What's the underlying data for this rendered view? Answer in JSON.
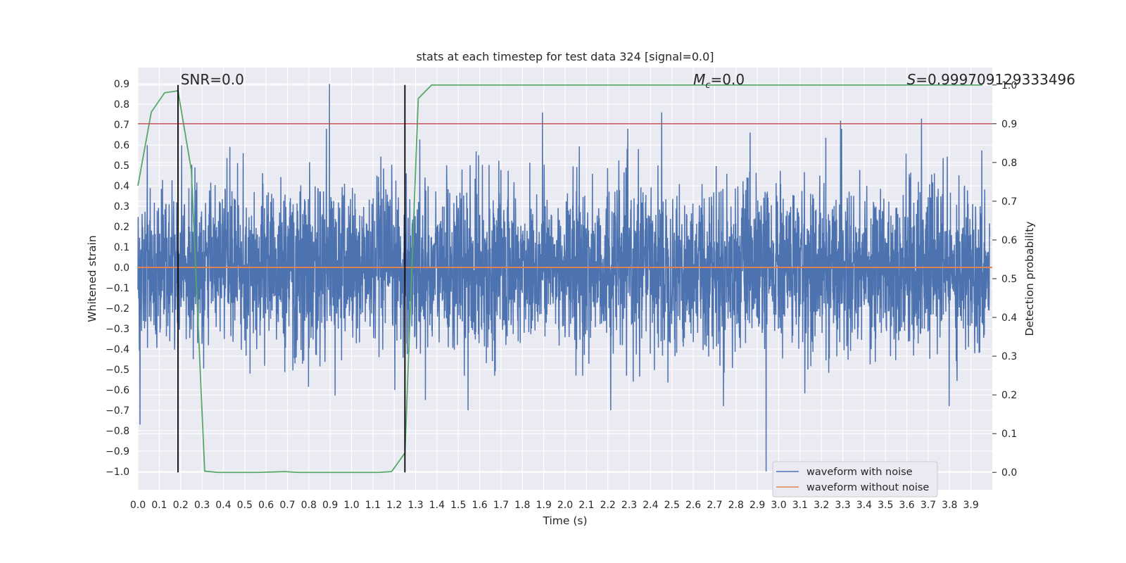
{
  "chart_data": {
    "type": "line",
    "title": "stats at each timestep for test data 324 [signal=0.0]",
    "xlabel": "Time (s)",
    "ylabel": "Whitened strain",
    "y2label": "Detection probability",
    "xlim": [
      0.0,
      4.0
    ],
    "ylim": [
      -1.09,
      0.98
    ],
    "y2lim": [
      -0.045,
      1.045
    ],
    "x_ticks": [
      "0.0",
      "0.1",
      "0.2",
      "0.3",
      "0.4",
      "0.5",
      "0.6",
      "0.7",
      "0.8",
      "0.9",
      "1.0",
      "1.1",
      "1.2",
      "1.3",
      "1.4",
      "1.5",
      "1.6",
      "1.7",
      "1.8",
      "1.9",
      "2.0",
      "2.1",
      "2.2",
      "2.3",
      "2.4",
      "2.5",
      "2.6",
      "2.7",
      "2.8",
      "2.9",
      "3.0",
      "3.1",
      "3.2",
      "3.3",
      "3.4",
      "3.5",
      "3.6",
      "3.7",
      "3.8",
      "3.9"
    ],
    "y_ticks": [
      "0.9",
      "0.8",
      "0.7",
      "0.6",
      "0.5",
      "0.4",
      "0.3",
      "0.2",
      "0.1",
      "0.0",
      "−0.1",
      "−0.2",
      "−0.3",
      "−0.4",
      "−0.5",
      "−0.6",
      "−0.7",
      "−0.8",
      "−0.9",
      "−1.0"
    ],
    "y2_ticks": [
      "1.0",
      "0.9",
      "0.8",
      "0.7",
      "0.6",
      "0.5",
      "0.4",
      "0.3",
      "0.2",
      "0.1",
      "0.0"
    ],
    "grid": true,
    "legend_position": "lower-right",
    "series": [
      {
        "name": "waveform with noise",
        "axis": "left",
        "color": "#4c72b0",
        "style": "dense-noise",
        "noise_sigma": 0.2,
        "spikes": [
          {
            "x": 0.9,
            "y": 0.9
          },
          {
            "x": 1.9,
            "y": 0.76
          },
          {
            "x": 2.46,
            "y": 0.76
          },
          {
            "x": 3.3,
            "y": 0.72
          },
          {
            "x": 3.68,
            "y": 0.73
          },
          {
            "x": 0.01,
            "y": -0.77
          },
          {
            "x": 2.95,
            "y": -1.0
          },
          {
            "x": 2.22,
            "y": -0.7
          },
          {
            "x": 3.81,
            "y": -0.68
          },
          {
            "x": 1.55,
            "y": -0.7
          },
          {
            "x": 1.35,
            "y": -0.65
          }
        ]
      },
      {
        "name": "waveform without noise",
        "axis": "left",
        "color": "#dd8452",
        "x": [
          0.0,
          4.0
        ],
        "y": [
          0.0,
          0.0
        ]
      },
      {
        "name": "",
        "axis": "right",
        "color": "#55a868",
        "x": [
          0.0,
          0.0625,
          0.125,
          0.1875,
          0.25,
          0.3125,
          0.375,
          0.4375,
          0.5,
          0.5625,
          0.625,
          0.6875,
          0.75,
          0.8125,
          0.875,
          0.9375,
          1.0,
          1.0625,
          1.125,
          1.1875,
          1.25,
          1.3125,
          1.375,
          1.4375,
          1.5,
          2.0,
          2.5,
          3.0,
          3.5,
          4.0
        ],
        "y": [
          0.74,
          0.93,
          0.98,
          0.985,
          0.78,
          0.003,
          0.0,
          0.0,
          0.0,
          0.0,
          0.001,
          0.002,
          0.0,
          0.0,
          0.0,
          0.0,
          0.0,
          0.0,
          0.0,
          0.002,
          0.05,
          0.965,
          1.0,
          1.0,
          1.0,
          1.0,
          1.0,
          1.0,
          1.0,
          1.0
        ]
      }
    ],
    "hlines": [
      {
        "y2": 0.9,
        "color": "#c44e52"
      }
    ],
    "vlines": [
      {
        "x": 0.1875,
        "color": "#000000"
      },
      {
        "x": 1.25,
        "color": "#000000"
      }
    ],
    "annotations": [
      {
        "text": "SNR=0.0"
      },
      {
        "math": "M",
        "sub": "c",
        "rest": "=0.0"
      },
      {
        "math": "S",
        "rest": "=0.999709129333496"
      }
    ]
  }
}
